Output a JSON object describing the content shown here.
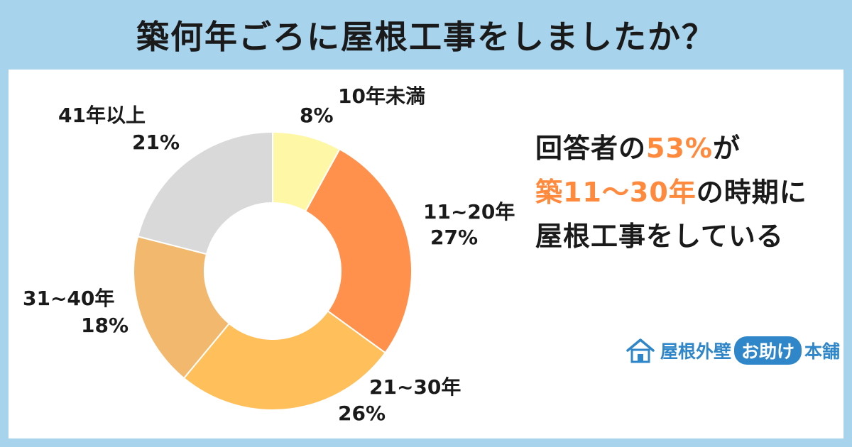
{
  "title": "築何年ごろに屋根工事をしましたか？",
  "summary": {
    "line1_a": "回答者の",
    "line1_hl": "53%",
    "line1_b": "が",
    "line2_hl": "築11〜30年",
    "line2_b": "の時期に",
    "line3": "屋根工事をしている"
  },
  "brand": {
    "part1": "屋根外壁",
    "pill": "お助け",
    "part2": "本舗",
    "icon": "house-icon"
  },
  "chart_data": {
    "type": "pie",
    "donut": true,
    "categories": [
      "10年未満",
      "11~20年",
      "21~30年",
      "31~40年",
      "41年以上"
    ],
    "values": [
      8,
      27,
      26,
      18,
      21
    ],
    "labels": [
      "8%",
      "27%",
      "26%",
      "18%",
      "21%"
    ],
    "colors": [
      "#fef7a6",
      "#ff914d",
      "#ffc05c",
      "#f2b96e",
      "#d9d9d9"
    ]
  }
}
